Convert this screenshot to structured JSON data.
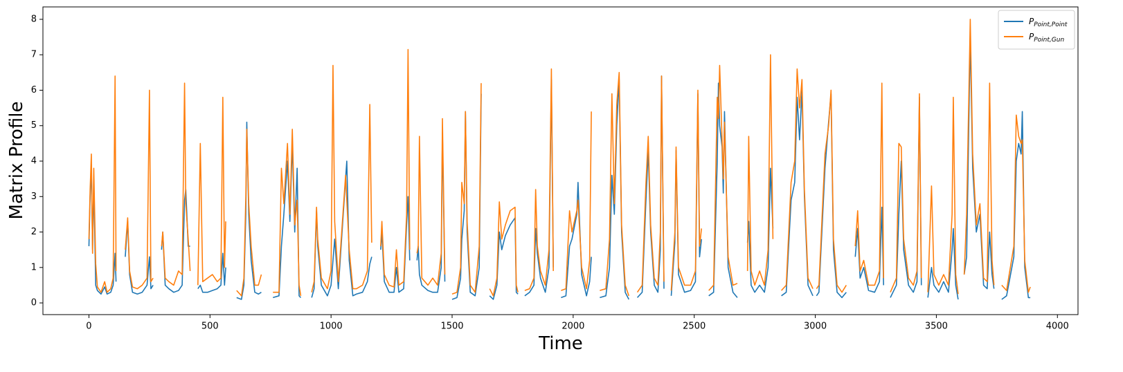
{
  "chart_data": {
    "type": "line",
    "xlabel": "Time",
    "ylabel": "Matrix Profile",
    "xlim": [
      -190,
      4085
    ],
    "ylim": [
      -0.33,
      8.35
    ],
    "xticks": [
      0,
      500,
      1000,
      1500,
      2000,
      2500,
      3000,
      3500,
      4000
    ],
    "yticks": [
      0,
      1,
      2,
      3,
      4,
      5,
      6,
      7,
      8
    ],
    "grid": false,
    "legend": "upper right",
    "x": [
      0,
      5,
      10,
      15,
      20,
      28,
      35,
      50,
      65,
      75,
      90,
      100,
      108,
      112,
      130,
      150,
      160,
      168,
      180,
      200,
      220,
      240,
      250,
      256,
      265,
      285,
      300,
      305,
      315,
      330,
      350,
      370,
      385,
      395,
      400,
      410,
      418,
      435,
      450,
      460,
      470,
      490,
      510,
      530,
      545,
      553,
      560,
      565,
      590,
      610,
      630,
      640,
      648,
      652,
      660,
      670,
      685,
      700,
      712,
      740,
      760,
      785,
      795,
      805,
      820,
      830,
      840,
      850,
      860,
      868,
      875,
      900,
      920,
      930,
      940,
      945,
      960,
      985,
      1000,
      1008,
      1015,
      1030,
      1060,
      1065,
      1075,
      1090,
      1105,
      1130,
      1150,
      1160,
      1168,
      1185,
      1205,
      1210,
      1220,
      1240,
      1260,
      1270,
      1280,
      1300,
      1312,
      1318,
      1325,
      1340,
      1355,
      1360,
      1365,
      1375,
      1400,
      1420,
      1440,
      1455,
      1460,
      1470,
      1485,
      1500,
      1520,
      1535,
      1540,
      1550,
      1555,
      1562,
      1575,
      1595,
      1612,
      1620,
      1640,
      1655,
      1670,
      1685,
      1695,
      1705,
      1720,
      1740,
      1760,
      1765,
      1772,
      1785,
      1800,
      1820,
      1838,
      1845,
      1852,
      1865,
      1885,
      1900,
      1910,
      1918,
      1935,
      1950,
      1970,
      1985,
      1995,
      2015,
      2020,
      2035,
      2055,
      2068,
      2075,
      2095,
      2110,
      2135,
      2150,
      2160,
      2170,
      2180,
      2190,
      2200,
      2215,
      2230,
      2245,
      2265,
      2285,
      2300,
      2310,
      2320,
      2335,
      2350,
      2360,
      2365,
      2375,
      2390,
      2405,
      2420,
      2425,
      2435,
      2460,
      2485,
      2505,
      2515,
      2522,
      2530,
      2550,
      2560,
      2580,
      2595,
      2600,
      2605,
      2615,
      2620,
      2625,
      2640,
      2660,
      2678,
      2700,
      2720,
      2725,
      2735,
      2750,
      2770,
      2790,
      2805,
      2815,
      2825,
      2845,
      2860,
      2880,
      2900,
      2915,
      2925,
      2935,
      2945,
      2955,
      2970,
      2990,
      2995,
      3005,
      3015,
      3040,
      3055,
      3065,
      3075,
      3090,
      3110,
      3128,
      3145,
      3165,
      3175,
      3185,
      3200,
      3220,
      3245,
      3265,
      3275,
      3282,
      3295,
      3310,
      3335,
      3345,
      3355,
      3365,
      3385,
      3405,
      3420,
      3430,
      3438,
      3450,
      3465,
      3480,
      3490,
      3510,
      3530,
      3550,
      3565,
      3570,
      3580,
      3590,
      3600,
      3615,
      3625,
      3640,
      3650,
      3665,
      3680,
      3695,
      3710,
      3720,
      3730,
      3738,
      3755,
      3770,
      3790,
      3820,
      3830,
      3840,
      3850,
      3855,
      3865,
      3880,
      3888
    ],
    "series": [
      {
        "name": "P",
        "subscript": "Point,Point",
        "color": "#1f77b4",
        "values": [
          1.6,
          3.0,
          3.9,
          1.5,
          3.4,
          0.5,
          0.35,
          0.25,
          0.45,
          0.25,
          0.3,
          0.5,
          1.4,
          0.6,
          null,
          1.3,
          2.3,
          0.8,
          0.3,
          0.25,
          0.3,
          0.5,
          1.3,
          0.4,
          0.5,
          null,
          1.5,
          2.0,
          0.5,
          0.4,
          0.3,
          0.35,
          0.5,
          2.9,
          3.2,
          1.6,
          1.6,
          null,
          0.4,
          0.5,
          0.3,
          0.3,
          0.35,
          0.4,
          0.5,
          1.4,
          0.5,
          1.0,
          null,
          0.15,
          0.1,
          0.5,
          2.5,
          5.1,
          2.5,
          1.2,
          0.3,
          0.25,
          0.3,
          null,
          0.15,
          0.2,
          1.6,
          2.5,
          4.0,
          2.3,
          4.5,
          2.0,
          3.8,
          0.2,
          0.15,
          null,
          0.15,
          0.4,
          2.6,
          1.6,
          0.5,
          0.2,
          0.5,
          1.2,
          1.8,
          0.4,
          3.5,
          4.0,
          1.2,
          0.2,
          0.25,
          0.3,
          0.6,
          1.1,
          1.3,
          null,
          1.5,
          2.0,
          0.6,
          0.3,
          0.3,
          1.0,
          0.3,
          0.4,
          2.2,
          3.0,
          1.2,
          null,
          1.2,
          1.6,
          0.8,
          0.5,
          0.35,
          0.3,
          0.3,
          1.0,
          4.8,
          0.6,
          null,
          0.1,
          0.15,
          0.7,
          1.8,
          2.6,
          5.4,
          2.0,
          0.3,
          0.2,
          1.0,
          5.9,
          null,
          0.2,
          0.1,
          0.5,
          2.0,
          1.5,
          1.9,
          2.2,
          2.4,
          0.3,
          0.25,
          null,
          0.2,
          0.3,
          0.5,
          2.1,
          1.4,
          0.7,
          0.3,
          1.0,
          6.3,
          1.0,
          null,
          0.15,
          0.2,
          1.6,
          1.8,
          2.5,
          3.4,
          0.8,
          0.2,
          0.6,
          1.3,
          null,
          0.15,
          0.2,
          1.0,
          3.6,
          2.5,
          5.0,
          6.3,
          2.0,
          0.3,
          0.1,
          null,
          0.15,
          0.3,
          2.8,
          4.3,
          2.0,
          0.5,
          0.3,
          1.5,
          6.4,
          0.4,
          null,
          0.2,
          1.7,
          4.3,
          0.8,
          0.3,
          0.35,
          0.6,
          5.9,
          1.3,
          1.8,
          null,
          0.2,
          0.3,
          4.0,
          6.2,
          5.0,
          4.4,
          3.1,
          5.4,
          1.0,
          0.3,
          0.15,
          null,
          1.7,
          2.3,
          0.5,
          0.3,
          0.5,
          0.3,
          1.0,
          3.8,
          2.1,
          null,
          0.2,
          0.3,
          2.9,
          3.4,
          5.8,
          4.6,
          6.0,
          3.0,
          0.5,
          0.2,
          null,
          0.2,
          0.3,
          3.8,
          5.1,
          5.9,
          1.5,
          0.3,
          0.15,
          0.3,
          null,
          1.3,
          2.1,
          0.7,
          1.0,
          0.35,
          0.3,
          0.6,
          2.7,
          0.5,
          null,
          0.15,
          0.5,
          2.5,
          4.0,
          1.5,
          0.5,
          0.3,
          0.6,
          5.8,
          0.5,
          null,
          0.15,
          1.0,
          0.5,
          0.3,
          0.6,
          0.3,
          1.5,
          2.1,
          0.5,
          0.1,
          null,
          0.8,
          1.3,
          7.5,
          3.8,
          2.0,
          2.5,
          0.5,
          0.4,
          2.0,
          0.8,
          0.4,
          null,
          0.1,
          0.2,
          1.3,
          4.0,
          4.5,
          4.2,
          5.4,
          1.0,
          0.15,
          0.15
        ]
      },
      {
        "name": "P",
        "subscript": "Point,Gun",
        "color": "#ff7f0e",
        "values": [
          1.8,
          3.2,
          4.2,
          1.4,
          3.8,
          1.1,
          0.45,
          0.3,
          0.6,
          0.3,
          0.4,
          0.7,
          6.4,
          0.9,
          null,
          1.5,
          2.4,
          0.9,
          0.45,
          0.4,
          0.5,
          0.7,
          6.0,
          0.6,
          0.7,
          null,
          1.6,
          2.0,
          0.7,
          0.6,
          0.5,
          0.9,
          0.8,
          6.2,
          2.8,
          1.8,
          0.9,
          null,
          0.5,
          4.5,
          0.6,
          0.7,
          0.8,
          0.6,
          0.7,
          5.8,
          1.0,
          2.3,
          null,
          0.35,
          0.2,
          0.7,
          3.0,
          4.9,
          2.8,
          1.6,
          0.5,
          0.5,
          0.8,
          null,
          0.3,
          0.3,
          3.8,
          2.8,
          4.5,
          2.5,
          4.9,
          2.2,
          2.9,
          0.5,
          0.2,
          null,
          0.3,
          0.6,
          2.7,
          1.8,
          0.7,
          0.4,
          0.9,
          6.7,
          2.3,
          0.6,
          3.6,
          2.9,
          1.5,
          0.4,
          0.4,
          0.5,
          0.9,
          5.6,
          1.7,
          null,
          1.6,
          2.3,
          0.8,
          0.5,
          0.45,
          1.5,
          0.5,
          0.6,
          2.5,
          7.15,
          1.5,
          null,
          1.4,
          1.6,
          4.7,
          0.7,
          0.5,
          0.7,
          0.5,
          1.4,
          5.2,
          0.8,
          null,
          0.25,
          0.3,
          1.0,
          3.4,
          2.8,
          5.4,
          2.3,
          0.5,
          0.3,
          1.6,
          6.2,
          null,
          0.4,
          0.2,
          0.7,
          2.85,
          1.8,
          2.2,
          2.6,
          2.7,
          0.5,
          0.3,
          null,
          0.35,
          0.4,
          0.7,
          3.2,
          1.6,
          0.9,
          0.5,
          1.5,
          6.6,
          0.9,
          null,
          0.35,
          0.4,
          2.6,
          2.0,
          2.6,
          2.9,
          1.0,
          0.4,
          1.2,
          5.4,
          null,
          0.35,
          0.4,
          1.8,
          5.9,
          2.8,
          5.6,
          6.5,
          2.2,
          0.5,
          0.2,
          null,
          0.3,
          0.5,
          3.3,
          4.7,
          2.2,
          0.7,
          0.5,
          2.0,
          6.4,
          0.6,
          null,
          0.35,
          2.0,
          4.4,
          1.0,
          0.5,
          0.5,
          0.9,
          6.0,
          1.6,
          2.1,
          null,
          0.35,
          0.5,
          5.8,
          5.2,
          6.7,
          4.6,
          3.5,
          5.1,
          1.3,
          0.5,
          0.55,
          null,
          0.9,
          4.7,
          0.9,
          0.5,
          0.9,
          0.5,
          1.5,
          7.0,
          1.8,
          null,
          0.35,
          0.5,
          3.4,
          4.0,
          6.6,
          5.5,
          6.3,
          3.2,
          0.7,
          0.4,
          null,
          0.4,
          0.5,
          4.2,
          5.0,
          6.0,
          1.8,
          0.5,
          0.3,
          0.5,
          null,
          1.6,
          2.6,
          0.9,
          1.2,
          0.5,
          0.5,
          0.9,
          6.2,
          0.7,
          null,
          0.3,
          0.7,
          4.5,
          4.4,
          1.8,
          0.7,
          0.5,
          0.9,
          5.9,
          0.7,
          null,
          0.3,
          3.3,
          0.8,
          0.5,
          0.8,
          0.5,
          2.5,
          5.8,
          0.8,
          0.25,
          null,
          0.8,
          2.5,
          8.0,
          4.2,
          2.2,
          2.8,
          0.7,
          0.6,
          6.2,
          1.2,
          0.5,
          null,
          0.5,
          0.35,
          1.6,
          5.3,
          4.7,
          4.5,
          4.6,
          1.2,
          0.3,
          0.45
        ]
      }
    ]
  }
}
